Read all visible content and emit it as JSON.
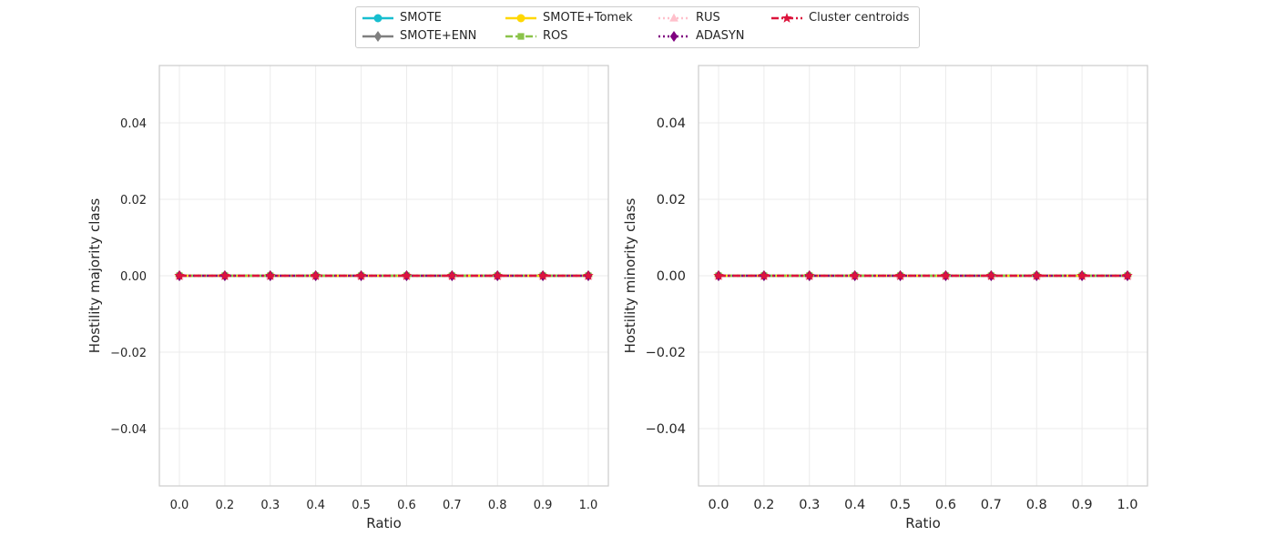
{
  "legend": {
    "items": [
      {
        "label": "SMOTE",
        "color": "#17becf",
        "marker": "circle",
        "dash": "solid"
      },
      {
        "label": "SMOTE+ENN",
        "color": "#7f7f7f",
        "marker": "diamond",
        "dash": "solid"
      },
      {
        "label": "SMOTE+Tomek",
        "color": "#ffd700",
        "marker": "circle",
        "dash": "solid"
      },
      {
        "label": "ROS",
        "color": "#8bc34a",
        "marker": "square",
        "dash": "dashed"
      },
      {
        "label": "RUS",
        "color": "#ffc0cb",
        "marker": "triangle",
        "dash": "dotted"
      },
      {
        "label": "ADASYN",
        "color": "#800080",
        "marker": "diamond",
        "dash": "dotted"
      },
      {
        "label": "Cluster centroids",
        "color": "#dc143c",
        "marker": "star",
        "dash": "dashdot"
      }
    ]
  },
  "chart_data": [
    {
      "type": "line",
      "xlabel": "Ratio",
      "ylabel": "Hostility majority class",
      "x": [
        "0.0",
        "0.2",
        "0.3",
        "0.4",
        "0.5",
        "0.6",
        "0.7",
        "0.8",
        "0.9",
        "1.0"
      ],
      "yticks": [
        "0.04",
        "0.02",
        "0.00",
        "−0.02",
        "−0.04"
      ],
      "ylim": [
        -0.055,
        0.055
      ],
      "grid": true,
      "series": [
        {
          "name": "SMOTE",
          "values": [
            0,
            0,
            0,
            0,
            0,
            0,
            0,
            0,
            0,
            0
          ]
        },
        {
          "name": "SMOTE+ENN",
          "values": [
            0,
            0,
            0,
            0,
            0,
            0,
            0,
            0,
            0,
            0
          ]
        },
        {
          "name": "SMOTE+Tomek",
          "values": [
            0,
            0,
            0,
            0,
            0,
            0,
            0,
            0,
            0,
            0
          ]
        },
        {
          "name": "ROS",
          "values": [
            0,
            0,
            0,
            0,
            0,
            0,
            0,
            0,
            0,
            0
          ]
        },
        {
          "name": "RUS",
          "values": [
            0,
            0,
            0,
            0,
            0,
            0,
            0,
            0,
            0,
            0
          ]
        },
        {
          "name": "ADASYN",
          "values": [
            0,
            0,
            0,
            0,
            0,
            0,
            0,
            0,
            0,
            0
          ]
        },
        {
          "name": "Cluster centroids",
          "values": [
            0,
            0,
            0,
            0,
            0,
            0,
            0,
            0,
            0,
            0
          ]
        }
      ]
    },
    {
      "type": "line",
      "xlabel": "Ratio",
      "ylabel": "Hostility minority class",
      "x": [
        "0.0",
        "0.2",
        "0.3",
        "0.4",
        "0.5",
        "0.6",
        "0.7",
        "0.8",
        "0.9",
        "1.0"
      ],
      "yticks": [
        "0.04",
        "0.02",
        "0.00",
        "−0.02",
        "−0.04"
      ],
      "ylim": [
        -0.055,
        0.055
      ],
      "grid": true,
      "series": [
        {
          "name": "SMOTE",
          "values": [
            0,
            0,
            0,
            0,
            0,
            0,
            0,
            0,
            0,
            0
          ]
        },
        {
          "name": "SMOTE+ENN",
          "values": [
            0,
            0,
            0,
            0,
            0,
            0,
            0,
            0,
            0,
            0
          ]
        },
        {
          "name": "SMOTE+Tomek",
          "values": [
            0,
            0,
            0,
            0,
            0,
            0,
            0,
            0,
            0,
            0
          ]
        },
        {
          "name": "ROS",
          "values": [
            0,
            0,
            0,
            0,
            0,
            0,
            0,
            0,
            0,
            0
          ]
        },
        {
          "name": "RUS",
          "values": [
            0,
            0,
            0,
            0,
            0,
            0,
            0,
            0,
            0,
            0
          ]
        },
        {
          "name": "ADASYN",
          "values": [
            0,
            0,
            0,
            0,
            0,
            0,
            0,
            0,
            0,
            0
          ]
        },
        {
          "name": "Cluster centroids",
          "values": [
            0,
            0,
            0,
            0,
            0,
            0,
            0,
            0,
            0,
            0
          ]
        }
      ]
    }
  ]
}
